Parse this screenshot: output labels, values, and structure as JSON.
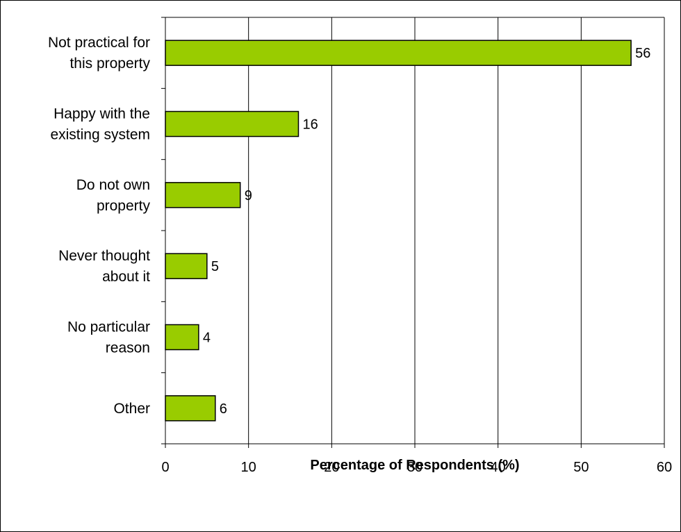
{
  "chart_data": {
    "type": "bar",
    "orientation": "horizontal",
    "categories": [
      [
        "Not practical for",
        "this property"
      ],
      [
        "Happy with the",
        "existing system"
      ],
      [
        "Do not own",
        "property"
      ],
      [
        "Never thought",
        "about it"
      ],
      [
        "No particular",
        "reason"
      ],
      [
        "Other"
      ]
    ],
    "values": [
      56,
      16,
      9,
      5,
      4,
      6
    ],
    "xlabel": "Percentage of Respondents (%)",
    "ylabel": "",
    "xlim": [
      0,
      60
    ],
    "xticks": [
      "0",
      "10",
      "20",
      "30",
      "40",
      "50",
      "60"
    ],
    "grid": "vertical",
    "data_labels": true,
    "colors": {
      "bar_fill": "#99CC00",
      "bar_stroke": "#000000",
      "grid": "#000000"
    }
  }
}
